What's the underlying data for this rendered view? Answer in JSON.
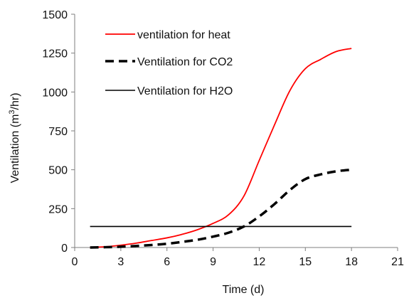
{
  "chart_data": {
    "type": "line",
    "title": "",
    "xlabel": "Time (d)",
    "ylabel": {
      "main": "Ventilation (m",
      "superscript": "3",
      "tail": "/hr)"
    },
    "xlim": [
      0,
      21
    ],
    "ylim": [
      0,
      1500
    ],
    "xticks": [
      "0",
      "3",
      "6",
      "9",
      "12",
      "15",
      "18",
      "21"
    ],
    "yticks": [
      "0",
      "250",
      "500",
      "750",
      "1000",
      "1250",
      "1500"
    ],
    "xtick_values": [
      0,
      3,
      6,
      9,
      12,
      15,
      18,
      21
    ],
    "ytick_values": [
      0,
      250,
      500,
      750,
      1000,
      1250,
      1500
    ],
    "grid": false,
    "legend_placement": "top-left",
    "series": [
      {
        "name": "ventilation for heat",
        "color": "#ff0000",
        "style": "solid",
        "x": [
          1,
          2,
          3,
          4,
          5,
          6,
          7,
          8,
          9,
          10,
          11,
          12,
          13,
          14,
          15,
          16,
          17,
          18
        ],
        "y": [
          0,
          5,
          15,
          28,
          45,
          62,
          85,
          115,
          155,
          210,
          330,
          560,
          790,
          1010,
          1150,
          1210,
          1260,
          1280
        ]
      },
      {
        "name": "Ventilation for CO2",
        "color": "#000000",
        "style": "dashed",
        "x": [
          1,
          2,
          3,
          4,
          5,
          6,
          7,
          8,
          9,
          10,
          11,
          12,
          13,
          14,
          15,
          16,
          17,
          18
        ],
        "y": [
          0,
          2,
          5,
          10,
          16,
          24,
          36,
          50,
          70,
          95,
          135,
          200,
          280,
          370,
          440,
          470,
          490,
          500
        ]
      },
      {
        "name": "Ventilation for H2O",
        "color": "#000000",
        "style": "solid",
        "x": [
          1,
          18
        ],
        "y": [
          135,
          135
        ]
      }
    ]
  }
}
